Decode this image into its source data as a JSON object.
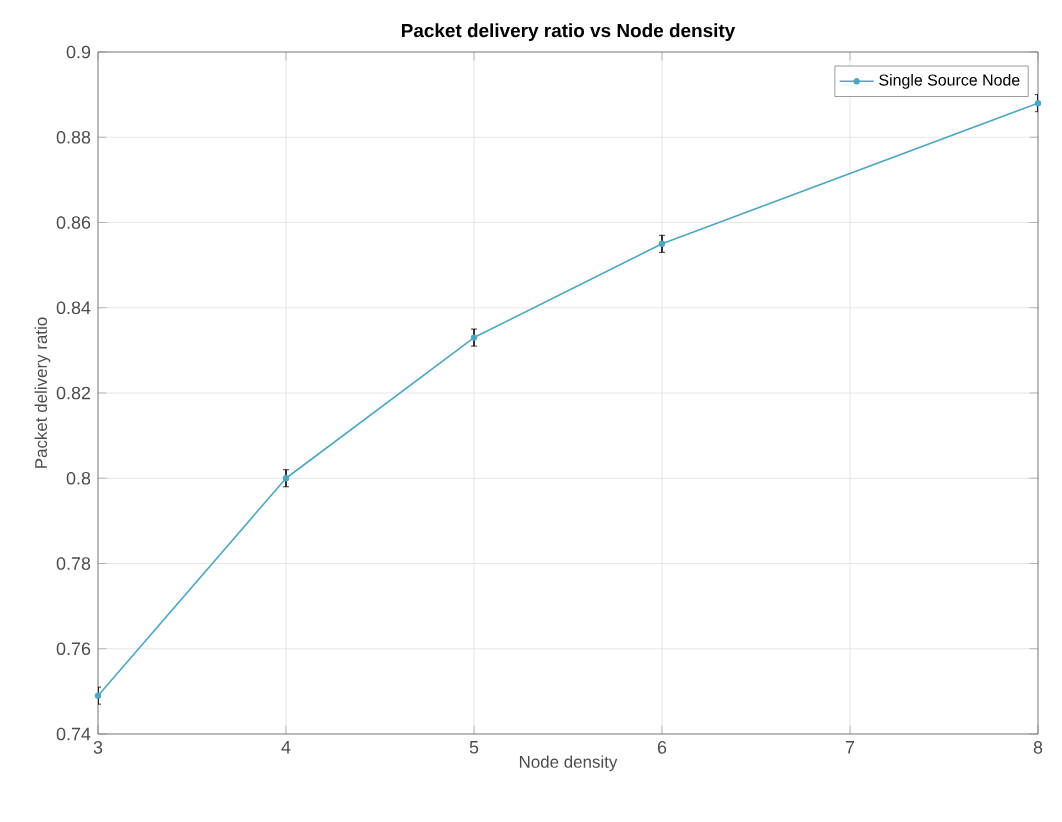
{
  "chart_data": {
    "type": "line",
    "title": "Packet delivery ratio vs Node density",
    "xlabel": "Node density",
    "ylabel": "Packet delivery ratio",
    "x": [
      3,
      4,
      5,
      6,
      8
    ],
    "series": [
      {
        "name": "Single Source Node",
        "color": "#4fa6c0",
        "values": [
          0.749,
          0.8,
          0.833,
          0.855,
          0.888
        ],
        "errors": [
          0.002,
          0.002,
          0.002,
          0.002,
          0.002
        ]
      }
    ],
    "xlim": [
      3,
      8
    ],
    "xticks": [
      3,
      4,
      5,
      6,
      7,
      8
    ],
    "ylim": [
      0.74,
      0.9
    ],
    "yticks": [
      0.74,
      0.76,
      0.78,
      0.8,
      0.82,
      0.84,
      0.86,
      0.88,
      0.9
    ],
    "grid": true,
    "legend": "top right",
    "marker": "circle",
    "line_style": "solid"
  }
}
